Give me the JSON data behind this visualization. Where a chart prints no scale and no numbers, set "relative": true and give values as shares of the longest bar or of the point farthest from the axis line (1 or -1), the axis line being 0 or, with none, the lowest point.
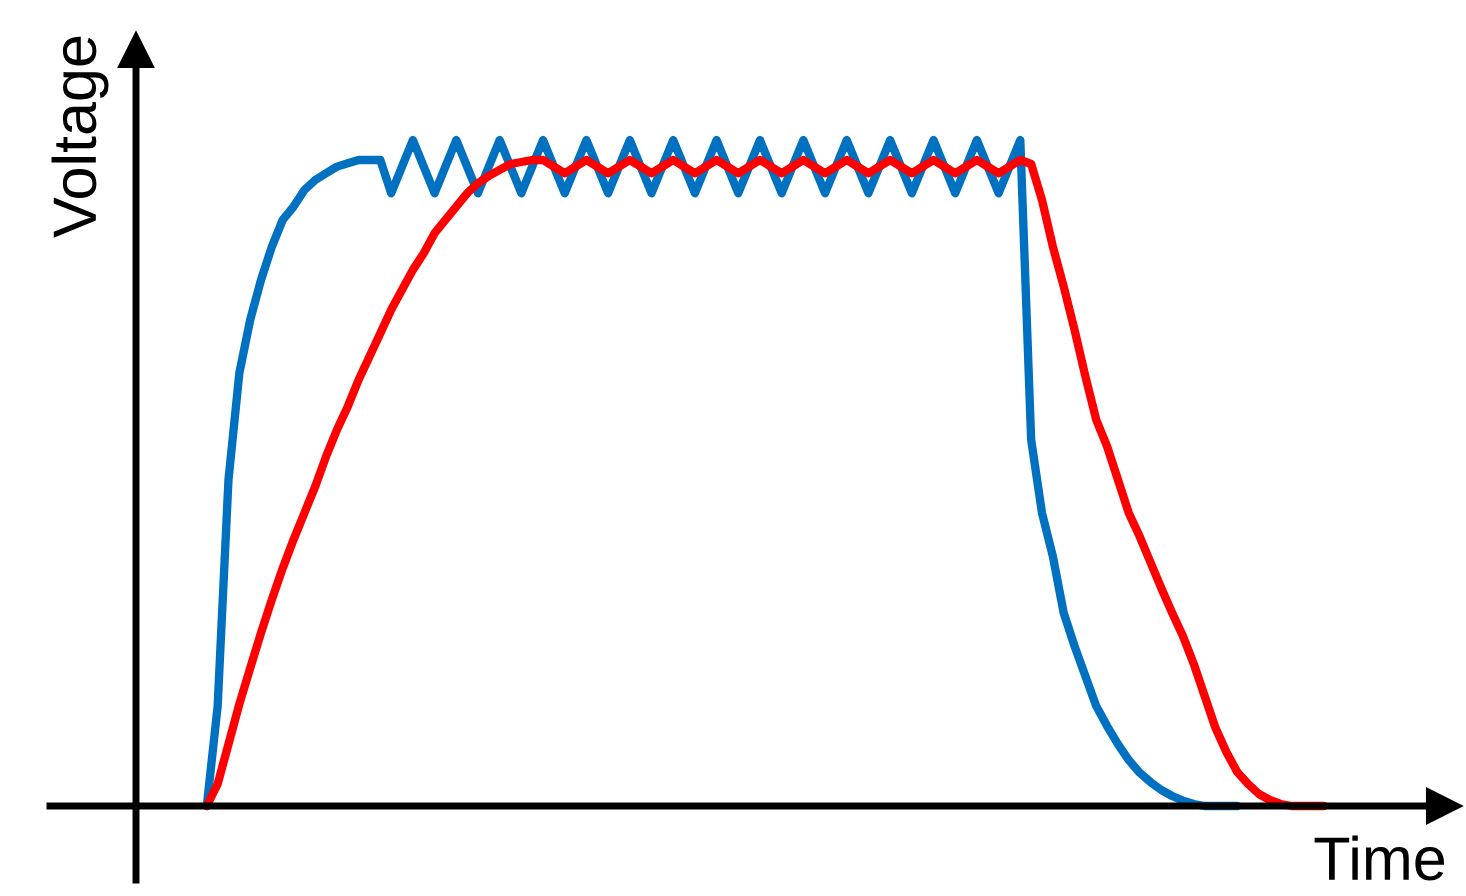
{
  "chart_data": {
    "type": "line",
    "relative": true,
    "xlabel": "Time",
    "ylabel": "Voltage",
    "categories": [
      null,
      null,
      null,
      null,
      null,
      null,
      null,
      null,
      null,
      null,
      null,
      null,
      null,
      null,
      null,
      null,
      null,
      null,
      null,
      null,
      null,
      null,
      null,
      null,
      null,
      null,
      null,
      null,
      null,
      null,
      null,
      null,
      null,
      null,
      null,
      null,
      null,
      null,
      null,
      null,
      null,
      null,
      null,
      null,
      null,
      null,
      null,
      null,
      null,
      null,
      null,
      null,
      null,
      null,
      null,
      null,
      null,
      null,
      null,
      null,
      null,
      null,
      null,
      null,
      null,
      null,
      null,
      null,
      null,
      null,
      null,
      null,
      null,
      null,
      null,
      null,
      null,
      null,
      null,
      null,
      null,
      null,
      null,
      null,
      null,
      null,
      null,
      null,
      null,
      null,
      null,
      null,
      null,
      null,
      null,
      null,
      null,
      null,
      null,
      null,
      null,
      null,
      null,
      null
    ],
    "series": [
      {
        "color": "#0070c0",
        "values": [
          0,
          0.15,
          0.49,
          0.65,
          0.73,
          0.79,
          0.84,
          0.88,
          0.9,
          0.925,
          0.94,
          0.95,
          0.96,
          0.965,
          0.97,
          0.97,
          0.97,
          0.92,
          0.96,
          1,
          0.96,
          0.92,
          0.96,
          1,
          0.96,
          0.92,
          0.96,
          1,
          0.96,
          0.92,
          0.96,
          1,
          0.96,
          0.92,
          0.96,
          1,
          0.96,
          0.92,
          0.96,
          1,
          0.96,
          0.92,
          0.96,
          1,
          0.96,
          0.92,
          0.96,
          1,
          0.96,
          0.92,
          0.96,
          1,
          0.96,
          0.92,
          0.96,
          1,
          0.96,
          0.92,
          0.96,
          1,
          0.96,
          0.92,
          0.96,
          1,
          0.96,
          0.92,
          0.96,
          1,
          0.96,
          0.92,
          0.96,
          1,
          0.96,
          0.92,
          0.96,
          1,
          0.55,
          0.44,
          0.375,
          0.29,
          0.24,
          0.195,
          0.15,
          0.12,
          0.093,
          0.069,
          0.05,
          0.036,
          0.024,
          0.015,
          0.008,
          0.003,
          0,
          0,
          0,
          0,
          null,
          null,
          null,
          null,
          null,
          null,
          null,
          null
        ]
      },
      {
        "color": "#ff0000",
        "values": [
          0,
          0.033,
          0.093,
          0.153,
          0.207,
          0.26,
          0.31,
          0.357,
          0.4,
          0.44,
          0.48,
          0.525,
          0.565,
          0.6,
          0.64,
          0.675,
          0.71,
          0.745,
          0.775,
          0.805,
          0.83,
          0.86,
          0.88,
          0.9,
          0.92,
          0.935,
          0.946,
          0.955,
          0.964,
          0.967,
          0.97,
          0.97,
          0.96,
          0.95,
          0.96,
          0.97,
          0.96,
          0.95,
          0.96,
          0.97,
          0.96,
          0.95,
          0.96,
          0.97,
          0.96,
          0.95,
          0.96,
          0.97,
          0.96,
          0.95,
          0.96,
          0.97,
          0.96,
          0.95,
          0.96,
          0.97,
          0.96,
          0.95,
          0.96,
          0.97,
          0.96,
          0.95,
          0.96,
          0.97,
          0.96,
          0.95,
          0.96,
          0.97,
          0.96,
          0.95,
          0.96,
          0.97,
          0.96,
          0.95,
          0.96,
          0.97,
          0.964,
          0.91,
          0.84,
          0.78,
          0.715,
          0.645,
          0.58,
          0.54,
          0.49,
          0.44,
          0.405,
          0.366,
          0.327,
          0.29,
          0.255,
          0.213,
          0.165,
          0.117,
          0.081,
          0.051,
          0.033,
          0.018,
          0.009,
          0.003,
          0,
          0,
          0,
          0
        ]
      }
    ]
  }
}
